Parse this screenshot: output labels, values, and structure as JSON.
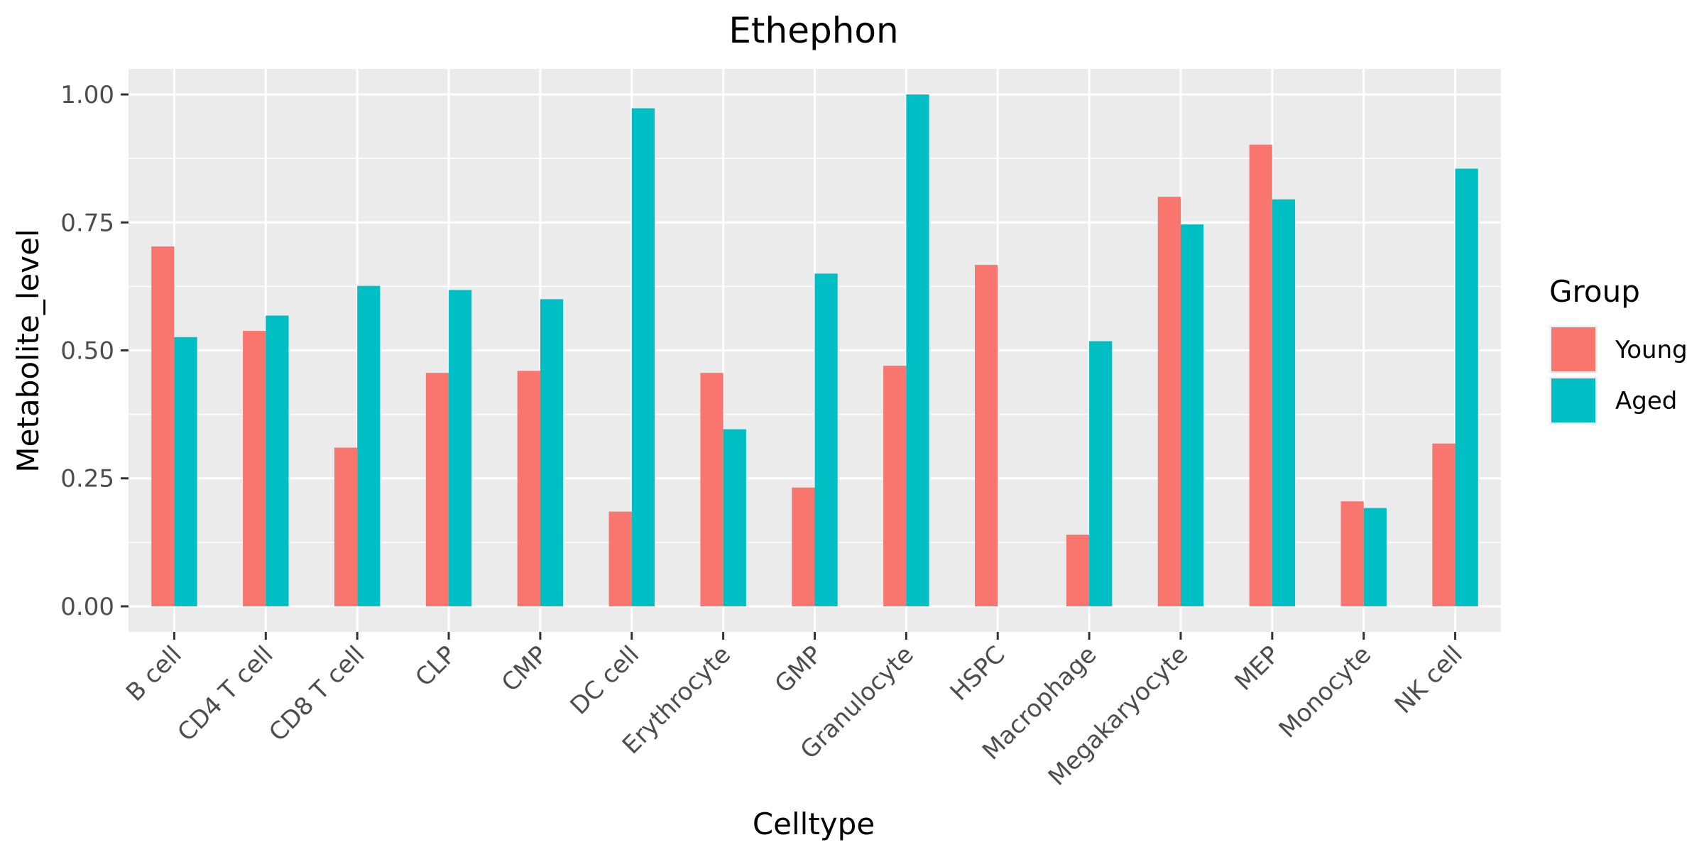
{
  "chart_data": {
    "type": "bar",
    "title": "Ethephon",
    "xlabel": "Celltype",
    "ylabel": "Metabolite_level",
    "ylim": [
      -0.05,
      1.05
    ],
    "yticks": [
      0,
      0.25,
      0.5,
      0.75,
      1.0
    ],
    "ytick_labels": [
      "0.00",
      "0.25",
      "0.50",
      "0.75",
      "1.00"
    ],
    "grid": true,
    "legend": {
      "title": "Group",
      "position": "right"
    },
    "categories": [
      "B cell",
      "CD4 T cell",
      "CD8 T cell",
      "CLP",
      "CMP",
      "DC cell",
      "Erythrocyte",
      "GMP",
      "Granulocyte",
      "HSPC",
      "Macrophage",
      "Megakaryocyte",
      "MEP",
      "Monocyte",
      "NK cell"
    ],
    "series": [
      {
        "name": "Young",
        "color": "#F8766D",
        "values": [
          0.703,
          0.538,
          0.31,
          0.456,
          0.46,
          0.185,
          0.456,
          0.232,
          0.47,
          0.667,
          0.14,
          0.8,
          0.902,
          0.205,
          0.318
        ]
      },
      {
        "name": "Aged",
        "color": "#00BFC4",
        "values": [
          0.526,
          0.568,
          0.626,
          0.618,
          0.6,
          0.973,
          0.346,
          0.65,
          1.0,
          0.0,
          0.518,
          0.746,
          0.795,
          0.192,
          0.855
        ]
      }
    ]
  }
}
